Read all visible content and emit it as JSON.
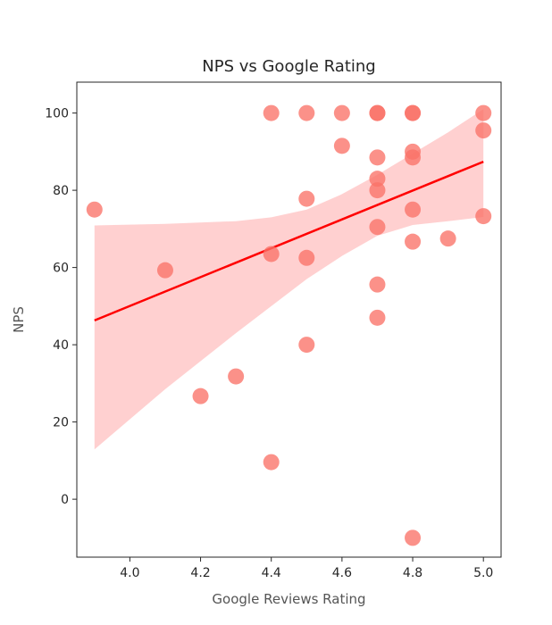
{
  "chart_data": {
    "type": "scatter",
    "title": "NPS vs Google Rating",
    "xlabel": "Google Reviews Rating",
    "ylabel": "NPS",
    "xlim": [
      3.85,
      5.05
    ],
    "ylim": [
      -15,
      108
    ],
    "x_ticks": [
      "4.0",
      "4.2",
      "4.4",
      "4.6",
      "4.8",
      "5.0"
    ],
    "y_ticks": [
      "0",
      "20",
      "40",
      "60",
      "80",
      "100"
    ],
    "grid": false,
    "point_color": "#fa7268",
    "regression_color": "#ff0000",
    "ci_color": "#ffc8c8",
    "points": [
      {
        "x": 3.9,
        "y": 75
      },
      {
        "x": 4.1,
        "y": 59.3
      },
      {
        "x": 4.2,
        "y": 26.7
      },
      {
        "x": 4.3,
        "y": 31.8
      },
      {
        "x": 4.4,
        "y": 100
      },
      {
        "x": 4.4,
        "y": 63.5
      },
      {
        "x": 4.4,
        "y": 9.6
      },
      {
        "x": 4.5,
        "y": 100
      },
      {
        "x": 4.5,
        "y": 77.8
      },
      {
        "x": 4.5,
        "y": 62.5
      },
      {
        "x": 4.5,
        "y": 40
      },
      {
        "x": 4.6,
        "y": 100
      },
      {
        "x": 4.6,
        "y": 91.5
      },
      {
        "x": 4.7,
        "y": 100
      },
      {
        "x": 4.7,
        "y": 100
      },
      {
        "x": 4.7,
        "y": 88.5
      },
      {
        "x": 4.7,
        "y": 83
      },
      {
        "x": 4.7,
        "y": 80
      },
      {
        "x": 4.7,
        "y": 70.5
      },
      {
        "x": 4.7,
        "y": 55.6
      },
      {
        "x": 4.7,
        "y": 47
      },
      {
        "x": 4.8,
        "y": 100
      },
      {
        "x": 4.8,
        "y": 100
      },
      {
        "x": 4.8,
        "y": 90
      },
      {
        "x": 4.8,
        "y": 88.5
      },
      {
        "x": 4.8,
        "y": 75
      },
      {
        "x": 4.8,
        "y": 66.7
      },
      {
        "x": 4.8,
        "y": -10
      },
      {
        "x": 4.9,
        "y": 67.5
      },
      {
        "x": 5.0,
        "y": 100
      },
      {
        "x": 5.0,
        "y": 95.5
      },
      {
        "x": 5.0,
        "y": 73.3
      }
    ],
    "regression_line": {
      "x": [
        3.9,
        5.0
      ],
      "y": [
        46.3,
        87.4
      ]
    },
    "confidence_band": {
      "x": [
        3.9,
        4.1,
        4.3,
        4.4,
        4.5,
        4.6,
        4.7,
        4.8,
        4.9,
        5.0
      ],
      "lower": [
        12.9,
        28.5,
        43,
        50,
        57,
        63,
        68.2,
        71,
        72,
        73.1
      ],
      "upper": [
        70.9,
        71.3,
        72,
        73,
        75,
        79,
        84,
        89.5,
        95,
        101
      ]
    }
  }
}
